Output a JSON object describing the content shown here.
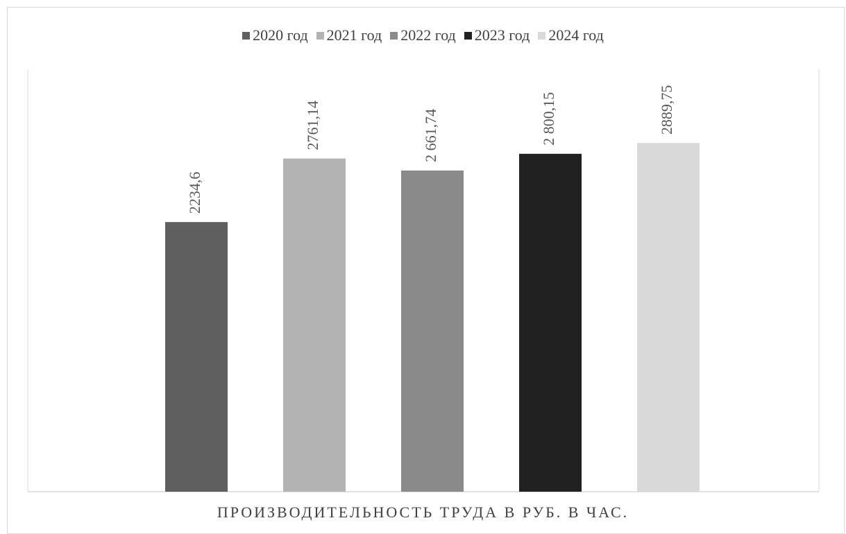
{
  "chart_data": {
    "type": "bar",
    "title": "",
    "xlabel": "ПРОИЗВОДИТЕЛЬНОСТЬ ТРУДА В РУБ. В ЧАС.",
    "ylabel": "",
    "ylim": [
      0,
      3500
    ],
    "grid": false,
    "legend_position": "top",
    "categories": [
      "ПРОИЗВОДИТЕЛЬНОСТЬ ТРУДА В РУБ. В ЧАС."
    ],
    "series": [
      {
        "name": "2020 год",
        "values": [
          2234.6
        ],
        "label": "2234,6",
        "color": "#5f5f5f"
      },
      {
        "name": "2021 год",
        "values": [
          2761.14
        ],
        "label": "2761,14",
        "color": "#b3b3b3"
      },
      {
        "name": "2022 год",
        "values": [
          2661.74
        ],
        "label": "2 661,74",
        "color": "#8a8a8a"
      },
      {
        "name": "2023 год",
        "values": [
          2800.15
        ],
        "label": "2 800,15",
        "color": "#212121"
      },
      {
        "name": "2024 год",
        "values": [
          2889.75
        ],
        "label": "2889,75",
        "color": "#d9d9d9"
      }
    ]
  }
}
